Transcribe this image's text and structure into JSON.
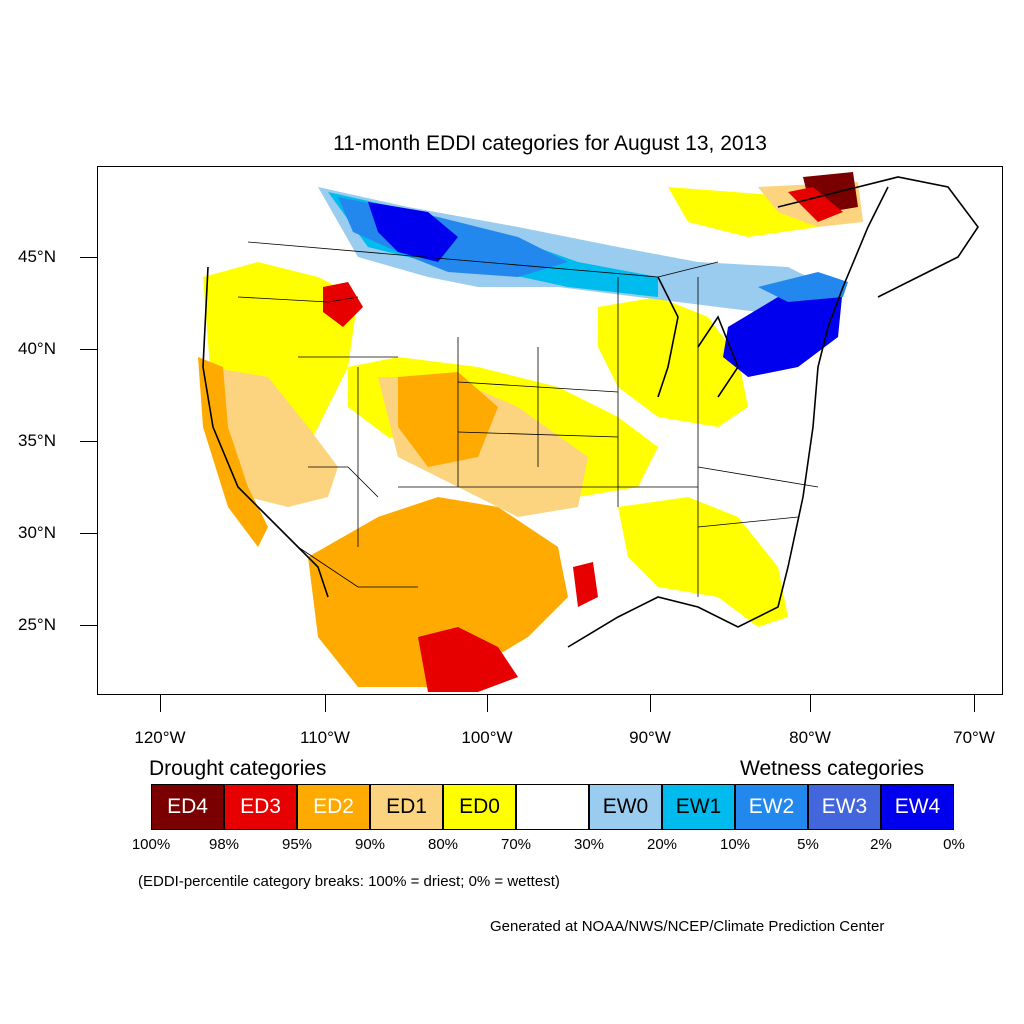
{
  "title": "11-month EDDI categories for August 13, 2013",
  "lat_labels": [
    "45°N",
    "40°N",
    "35°N",
    "30°N",
    "25°N"
  ],
  "lon_labels": [
    "120°W",
    "110°W",
    "100°W",
    "90°W",
    "80°W",
    "70°W"
  ],
  "legend": {
    "drought_title": "Drought categories",
    "wetness_title": "Wetness categories",
    "categories": [
      {
        "label": "ED4",
        "color": "#7a0000",
        "text_color": "#ffffff"
      },
      {
        "label": "ED3",
        "color": "#e60000",
        "text_color": "#ffffff"
      },
      {
        "label": "ED2",
        "color": "#ffaa00",
        "text_color": "#ffffff"
      },
      {
        "label": "ED1",
        "color": "#fcd37f",
        "text_color": "#000000"
      },
      {
        "label": "ED0",
        "color": "#ffff00",
        "text_color": "#000000"
      },
      {
        "label": "",
        "color": "#ffffff",
        "text_color": "#000000"
      },
      {
        "label": "EW0",
        "color": "#99ccee",
        "text_color": "#000000"
      },
      {
        "label": "EW1",
        "color": "#00bbee",
        "text_color": "#000000"
      },
      {
        "label": "EW2",
        "color": "#2288ee",
        "text_color": "#ffffff"
      },
      {
        "label": "EW3",
        "color": "#4466dd",
        "text_color": "#ffffff"
      },
      {
        "label": "EW4",
        "color": "#0000ee",
        "text_color": "#ffffff"
      }
    ],
    "percent_breaks": [
      "100%",
      "98%",
      "95%",
      "90%",
      "80%",
      "70%",
      "30%",
      "20%",
      "10%",
      "5%",
      "2%",
      "0%"
    ]
  },
  "note": "(EDDI-percentile category breaks: 100% = driest; 0% = wettest)",
  "credit": "Generated at NOAA/NWS/NCEP/Climate Prediction Center"
}
